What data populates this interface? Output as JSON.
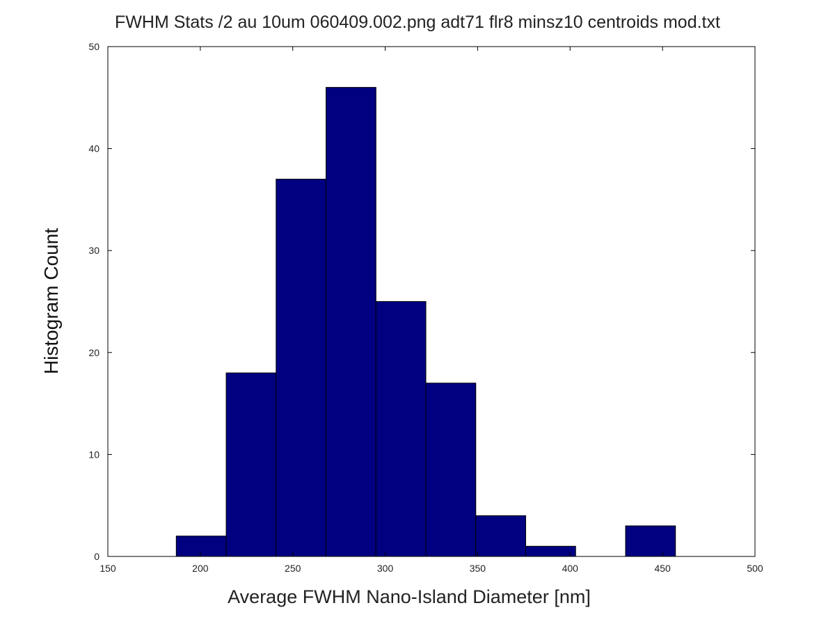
{
  "chart_data": {
    "type": "bar",
    "title": "FWHM Stats /2 au 10um 060409.002.png adt71 flr8 minsz10 centroids mod.txt",
    "xlabel": "Average FWHM Nano-Island Diameter [nm]",
    "ylabel": "Histogram Count",
    "xlim": [
      150,
      500
    ],
    "ylim": [
      0,
      50
    ],
    "xticks": [
      150,
      200,
      250,
      300,
      350,
      400,
      450,
      500
    ],
    "yticks": [
      0,
      10,
      20,
      30,
      40,
      50
    ],
    "bin_width": 27,
    "bins": [
      {
        "center": 200.5,
        "count": 2
      },
      {
        "center": 227.5,
        "count": 18
      },
      {
        "center": 254.5,
        "count": 37
      },
      {
        "center": 281.5,
        "count": 46
      },
      {
        "center": 308.5,
        "count": 25
      },
      {
        "center": 335.5,
        "count": 17
      },
      {
        "center": 362.5,
        "count": 4
      },
      {
        "center": 389.5,
        "count": 1
      },
      {
        "center": 416.5,
        "count": 0
      },
      {
        "center": 443.5,
        "count": 3
      }
    ],
    "bar_color": "#000080",
    "grid": false,
    "legend": "none"
  }
}
